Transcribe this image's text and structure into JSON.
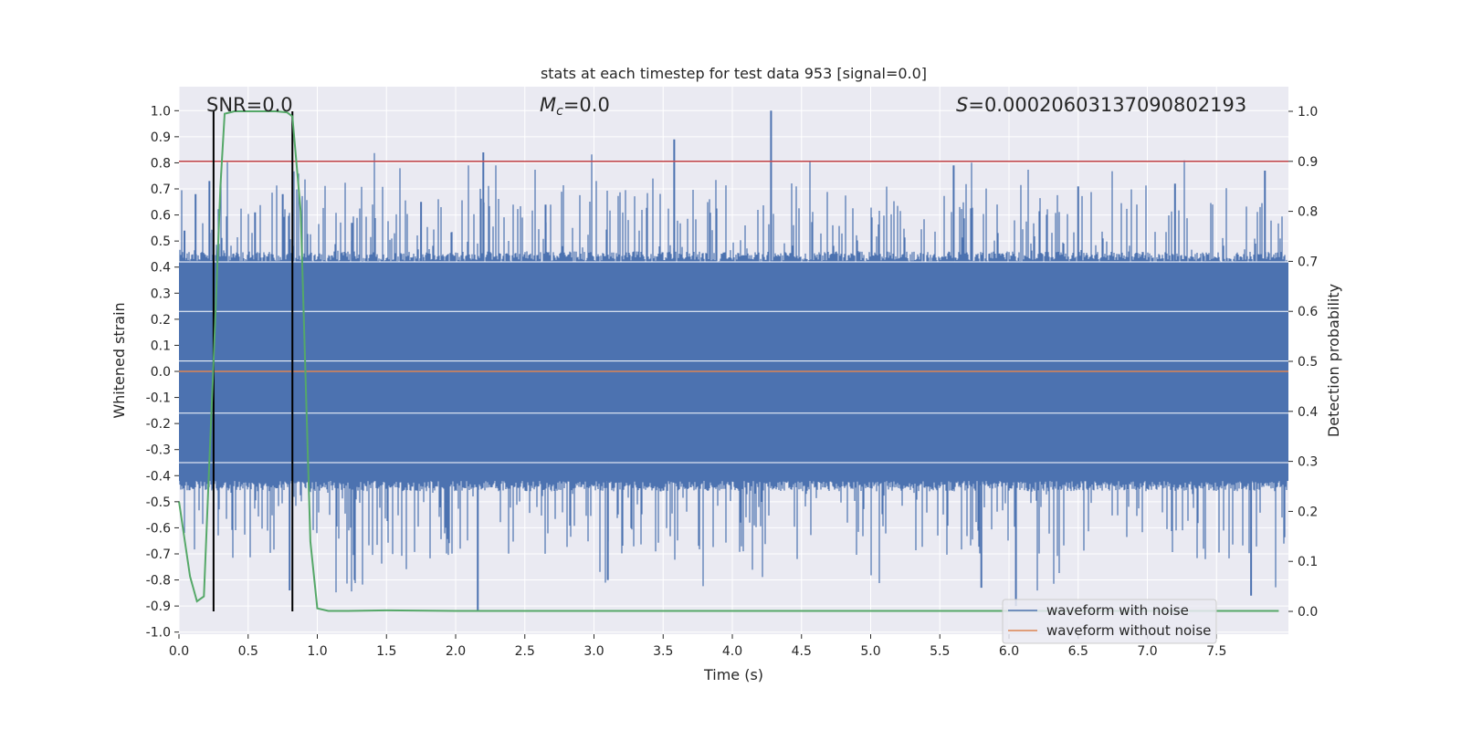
{
  "chart_data": {
    "type": "line",
    "title": "stats at each timestep for test data 953 [signal=0.0]",
    "xlabel": "Time (s)",
    "ylabel": "Whitened strain",
    "y2label": "Detection probability",
    "xlim": [
      0.0,
      8.0
    ],
    "ylim": [
      -1.05,
      1.05
    ],
    "y2lim": [
      -0.05,
      1.05
    ],
    "x_ticks": [
      "0.0",
      "0.5",
      "1.0",
      "1.5",
      "2.0",
      "2.5",
      "3.0",
      "3.5",
      "4.0",
      "4.5",
      "5.0",
      "5.5",
      "6.0",
      "6.5",
      "7.0",
      "7.5"
    ],
    "y_ticks": [
      "1.0",
      "0.9",
      "0.8",
      "0.7",
      "0.6",
      "0.5",
      "0.4",
      "0.3",
      "0.2",
      "0.1",
      "0.0",
      "-0.1",
      "-0.2",
      "-0.3",
      "-0.4",
      "-0.5",
      "-0.6",
      "-0.7",
      "-0.8",
      "-0.9",
      "-1.0"
    ],
    "y2_ticks": [
      "1.0",
      "0.9",
      "0.8",
      "0.7",
      "0.6",
      "0.5",
      "0.4",
      "0.3",
      "0.2",
      "0.1",
      "0.0"
    ],
    "annotations": {
      "snr": "SNR=0.0",
      "mc_symbol": "M",
      "mc_sub": "c",
      "mc_value": "=0.0",
      "s_symbol": "S",
      "s_value": "=0.00020603137090802193"
    },
    "threshold_y2": 0.9,
    "vertical_lines_x": [
      0.25,
      0.82
    ],
    "series": [
      {
        "name": "waveform with noise",
        "color": "#4c72b0",
        "envelope_upper": 0.42,
        "envelope_lower": -0.42,
        "peak_max": 1.0,
        "peak_min": -0.92
      },
      {
        "name": "waveform without noise",
        "color": "#dd8452",
        "values_constant": 0.0
      },
      {
        "name": "detection probability",
        "color": "#55a868",
        "x": [
          0.0,
          0.08,
          0.13,
          0.18,
          0.22,
          0.25,
          0.3,
          0.33,
          0.4,
          0.5,
          0.6,
          0.7,
          0.78,
          0.82,
          0.88,
          0.95,
          1.0,
          1.08,
          1.2,
          1.5,
          2.0,
          3.0,
          4.0,
          5.0,
          6.0,
          7.0,
          7.95
        ],
        "y": [
          0.22,
          0.07,
          0.02,
          0.03,
          0.3,
          0.5,
          0.85,
          0.995,
          1.0,
          1.0,
          1.0,
          1.0,
          0.998,
          0.99,
          0.8,
          0.14,
          0.006,
          0.001,
          0.001,
          0.002,
          0.001,
          0.001,
          0.001,
          0.001,
          0.001,
          0.001,
          0.001
        ]
      }
    ],
    "legend": {
      "position": "lower-right",
      "entries": [
        "waveform with noise",
        "waveform without noise"
      ]
    },
    "grid": true,
    "colors": {
      "threshold": "#c44e52",
      "vline": "#000000",
      "background": "#eaeaf2",
      "grid": "#ffffff"
    }
  }
}
